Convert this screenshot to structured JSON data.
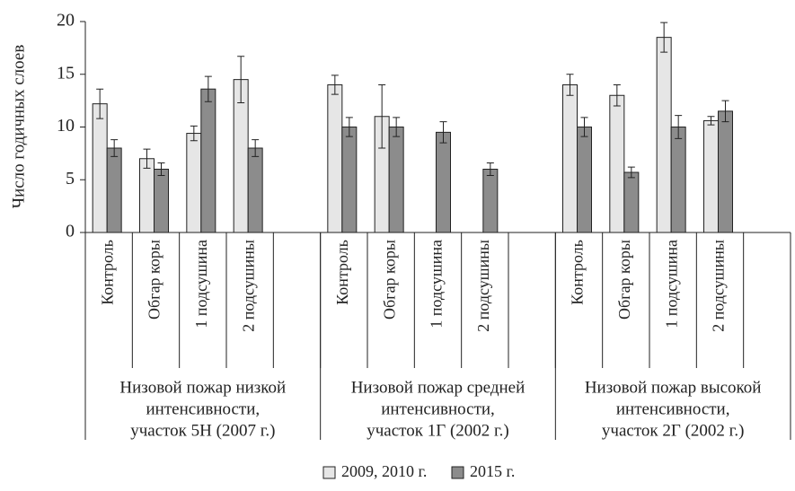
{
  "chart_data": {
    "type": "bar",
    "ylabel": "Число годичных слоев",
    "ylim": [
      0,
      20
    ],
    "yticks": [
      0,
      5,
      10,
      15,
      20
    ],
    "grid": false,
    "legend": "bottom",
    "categories": [
      "Контроль",
      "Обгар коры",
      "1 подсушина",
      "2 подсушины",
      null,
      "Контроль",
      "Обгар коры",
      "1 подсушина",
      "2 подсушины",
      null,
      "Контроль",
      "Обгар коры",
      "1 подсушина",
      "2 подсушины",
      null
    ],
    "group_labels": [
      [
        "Низовой пожар низкой",
        "интенсивности,",
        "участок 5Н (2007 г.)"
      ],
      [
        "Низовой пожар средней",
        "интенсивности,",
        "участок 1Г (2002 г.)"
      ],
      [
        "Низовой пожар высокой",
        "интенсивности,",
        "участок 2Г (2002 г.)"
      ]
    ],
    "series": [
      {
        "name": "2009, 2010 г.",
        "color": "#e6e6e6",
        "values": [
          12.2,
          7,
          9.4,
          14.5,
          null,
          14,
          11,
          null,
          null,
          null,
          14,
          13,
          18.5,
          10.6,
          null
        ],
        "errors": [
          1.4,
          0.9,
          0.7,
          2.2,
          null,
          0.9,
          3,
          null,
          null,
          null,
          1,
          1,
          1.4,
          0.4,
          null
        ]
      },
      {
        "name": "2015 г.",
        "color": "#8c8c8c",
        "values": [
          8,
          6,
          13.6,
          8,
          null,
          10,
          10,
          9.5,
          6,
          null,
          10,
          5.7,
          10,
          11.5,
          null
        ],
        "errors": [
          0.8,
          0.6,
          1.2,
          0.8,
          null,
          0.9,
          0.9,
          1,
          0.6,
          null,
          0.9,
          0.5,
          1.1,
          1,
          null
        ]
      }
    ]
  }
}
